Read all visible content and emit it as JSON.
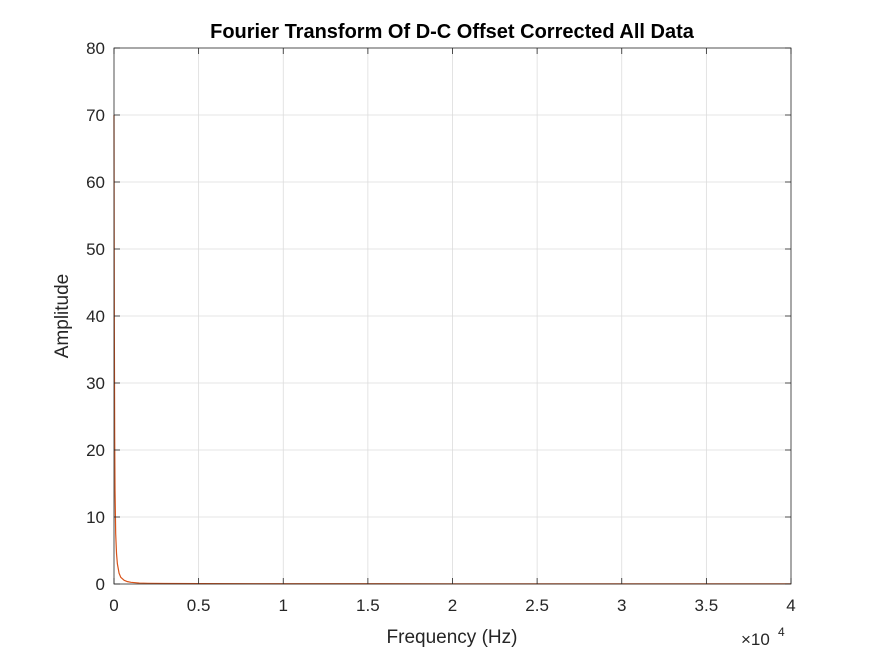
{
  "chart_data": {
    "type": "line",
    "title": "Fourier Transform Of D-C Offset Corrected All Data",
    "xlabel": "Frequency (Hz)",
    "ylabel": "Amplitude",
    "xlim": [
      0,
      40000
    ],
    "ylim": [
      0,
      80
    ],
    "x_ticks": [
      0,
      5000,
      10000,
      15000,
      20000,
      25000,
      30000,
      35000,
      40000
    ],
    "x_tick_labels": [
      "0",
      "0.5",
      "1",
      "1.5",
      "2",
      "2.5",
      "3",
      "3.5",
      "4"
    ],
    "x_exponent_label": "×10",
    "x_exponent": "4",
    "y_ticks": [
      0,
      10,
      20,
      30,
      40,
      50,
      60,
      70,
      80
    ],
    "y_tick_labels": [
      "0",
      "10",
      "20",
      "30",
      "40",
      "50",
      "60",
      "70",
      "80"
    ],
    "grid": true,
    "series": [
      {
        "color": "#D95319",
        "x": [
          0,
          10,
          20,
          40,
          60,
          100,
          150,
          200,
          300,
          400,
          600,
          800,
          1000,
          1500,
          2000,
          3000,
          5000,
          10000,
          20000,
          30000,
          40000
        ],
        "y": [
          70,
          52,
          38,
          22,
          14,
          7.5,
          4.5,
          3.0,
          1.6,
          1.0,
          0.55,
          0.35,
          0.25,
          0.14,
          0.1,
          0.07,
          0.05,
          0.04,
          0.03,
          0.03,
          0.03
        ]
      }
    ]
  }
}
